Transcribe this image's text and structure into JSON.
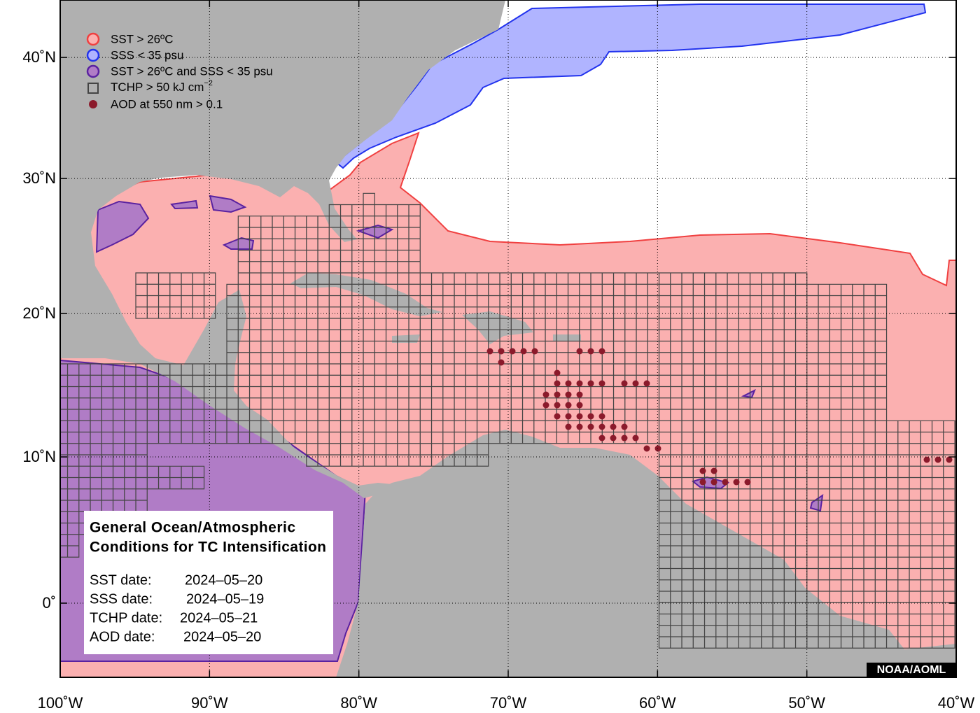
{
  "map": {
    "legend": [
      {
        "text": "SST > 26ºC"
      },
      {
        "text": "SSS < 35 psu"
      },
      {
        "text": "SST > 26ºC and SSS < 35 psu"
      },
      {
        "text": "TCHP > 50 kJ cm",
        "sup": "−2"
      },
      {
        "text": "AOD at 550 nm > 0.1"
      }
    ],
    "info": {
      "title_lines": [
        "General Ocean/Atmospheric",
        "Conditions for TC Intensification"
      ],
      "dates": [
        {
          "label": "SST date:",
          "value": "2024–05–20"
        },
        {
          "label": "SSS date:",
          "value": "2024–05–19"
        },
        {
          "label": "TCHP date:",
          "value": "2024–05–21"
        },
        {
          "label": "AOD date:",
          "value": "2024–05–20"
        }
      ]
    },
    "credit": "NOAA/AOML",
    "lat_ticks": [
      {
        "value": 40,
        "label": "40˚N"
      },
      {
        "value": 30,
        "label": "30˚N"
      },
      {
        "value": 20,
        "label": "20˚N"
      },
      {
        "value": 10,
        "label": "10˚N"
      },
      {
        "value": 0,
        "label": "0˚"
      }
    ],
    "lon_ticks": [
      {
        "value": -100,
        "label": "100˚W"
      },
      {
        "value": -90,
        "label": "90˚W"
      },
      {
        "value": -80,
        "label": "80˚W"
      },
      {
        "value": -70,
        "label": "70˚W"
      },
      {
        "value": -60,
        "label": "60˚W"
      },
      {
        "value": -50,
        "label": "50˚W"
      },
      {
        "value": -40,
        "label": "40˚W"
      }
    ]
  }
}
